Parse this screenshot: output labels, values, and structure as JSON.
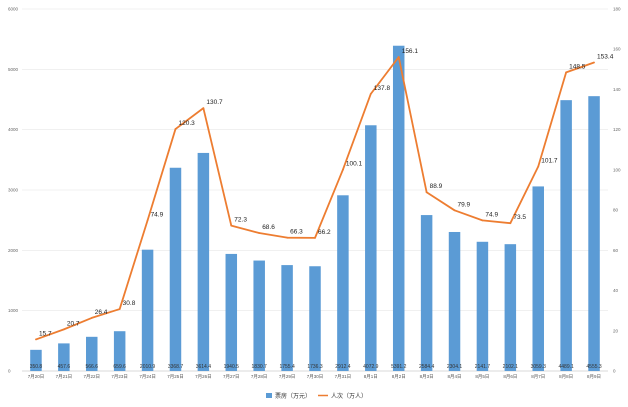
{
  "chart_data": {
    "type": "bar",
    "categories": [
      "7月20日",
      "7月21日",
      "7月22日",
      "7月23日",
      "7月24日",
      "7月25日",
      "7月26日",
      "7月27日",
      "7月28日",
      "7月29日",
      "7月30日",
      "7月31日",
      "8月1日",
      "8月2日",
      "8月3日",
      "8月4日",
      "8月5日",
      "8月6日",
      "8月7日",
      "8月8日",
      "8月9日"
    ],
    "series": [
      {
        "name": "票房（万元）",
        "type": "bar",
        "axis": "left",
        "color": "#5b9bd5",
        "values": [
          350.8,
          457.6,
          566.6,
          659.6,
          2010.9,
          3368.7,
          3614.4,
          1940.5,
          1830.7,
          1755.4,
          1736.3,
          2912.4,
          4072.9,
          5391.2,
          2584.4,
          2304.1,
          2141.7,
          2102.1,
          3059.3,
          4489.1,
          4555.3
        ],
        "labels": [
          "350.8",
          "457.6",
          "566.6",
          "659.6",
          "2010.9",
          "3368.7",
          "3614.4",
          "1940.5",
          "1830.7",
          "1755.4",
          "1736.3",
          "2912.4",
          "4072.9",
          "5391.2",
          "2584.4",
          "2304.1",
          "2141.7",
          "2102.1",
          "3059.3",
          "4489.1",
          "4555.3"
        ]
      },
      {
        "name": "人次（万人）",
        "type": "line",
        "axis": "right",
        "color": "#ed7d31",
        "values": [
          15.7,
          20.7,
          26.4,
          30.8,
          74.9,
          120.3,
          130.7,
          72.3,
          68.6,
          66.3,
          66.2,
          100.1,
          137.8,
          156.1,
          88.9,
          79.9,
          74.9,
          73.5,
          101.7,
          148.5,
          153.4
        ],
        "labels": [
          "15.7",
          "20.7",
          "26.4",
          "30.8",
          "74.9",
          "120.3",
          "130.7",
          "72.3",
          "68.6",
          "66.3",
          "66.2",
          "100.1",
          "137.8",
          "156.1",
          "88.9",
          "79.9",
          "74.9",
          "73.5",
          "101.7",
          "148.5",
          "153.4"
        ]
      }
    ],
    "y_left": {
      "min": 0,
      "max": 6000,
      "ticks": [
        "0",
        "1000",
        "2000",
        "3000",
        "4000",
        "5000",
        "6000"
      ]
    },
    "y_right": {
      "min": 0,
      "max": 180,
      "ticks": [
        "0",
        "20",
        "40",
        "60",
        "80",
        "100",
        "120",
        "140",
        "160",
        "180"
      ]
    },
    "gridlines": true,
    "legend_position": "bottom"
  }
}
